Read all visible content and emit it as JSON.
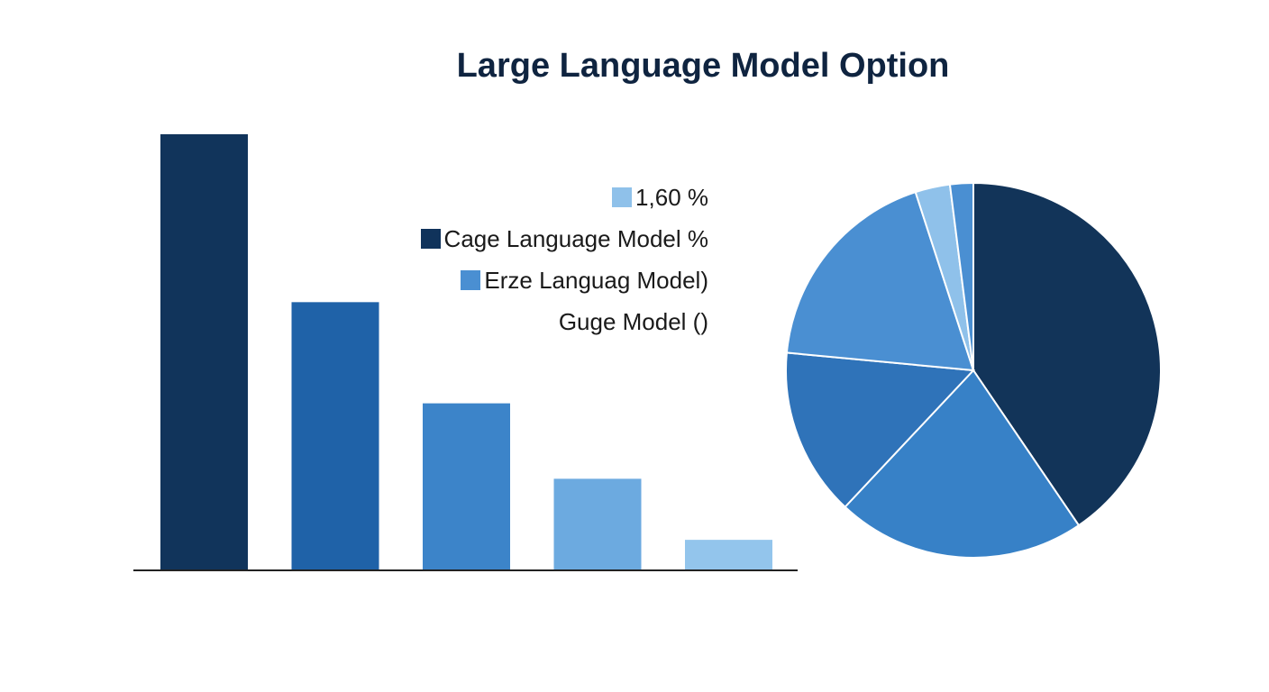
{
  "title": "Large Language Model Option",
  "legend": [
    {
      "label": "1,60 %",
      "color": "#8fc1ea",
      "swatch": true
    },
    {
      "label": "Cage Language Model %",
      "color": "#10335b",
      "swatch": true
    },
    {
      "label": "Erze Languag Model)",
      "color": "#4a8fd2",
      "swatch": true
    },
    {
      "label": "Guge Model ()",
      "color": "",
      "swatch": false
    }
  ],
  "chart_data": [
    {
      "type": "bar",
      "values": [
        100,
        61.5,
        38.3,
        21,
        7
      ],
      "colors": [
        "#11345b",
        "#1f62a8",
        "#3c84c9",
        "#6caae0",
        "#93c5ec"
      ],
      "ylim": [
        0,
        100
      ],
      "grid": false
    },
    {
      "type": "pie",
      "values": [
        40.5,
        21.5,
        14.5,
        18.5,
        3.0,
        2.0
      ],
      "colors": [
        "#123459",
        "#3781c7",
        "#2f73b9",
        "#4a8fd2",
        "#8fc1ea",
        "#4a8fd2"
      ]
    }
  ]
}
